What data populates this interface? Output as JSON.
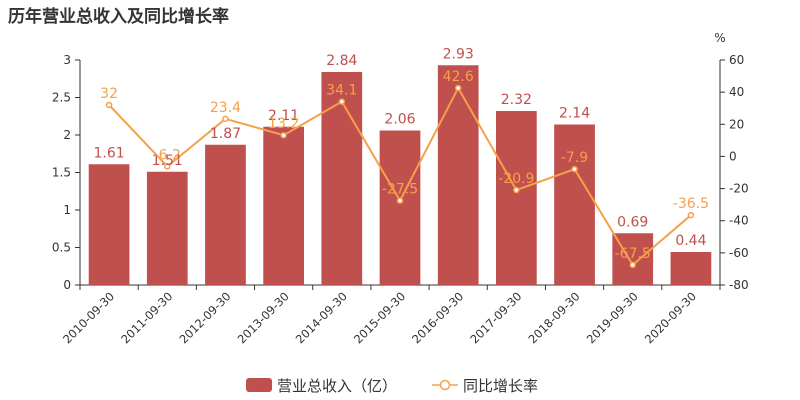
{
  "chart_data": {
    "type": "bar",
    "title": "历年营业总收入及同比增长率",
    "categories": [
      "2010-09-30",
      "2011-09-30",
      "2012-09-30",
      "2013-09-30",
      "2014-09-30",
      "2015-09-30",
      "2016-09-30",
      "2017-09-30",
      "2018-09-30",
      "2019-09-30",
      "2020-09-30"
    ],
    "series": [
      {
        "name": "营业总收入（亿）",
        "type": "bar",
        "axis": "left",
        "values": [
          1.61,
          1.51,
          1.87,
          2.11,
          2.84,
          2.06,
          2.93,
          2.32,
          2.14,
          0.69,
          0.44
        ],
        "labels": [
          "1.61",
          "1.51",
          "1.87",
          "2.11",
          "2.84",
          "2.06",
          "2.93",
          "2.32",
          "2.14",
          "0.69",
          "0.44"
        ]
      },
      {
        "name": "同比增长率",
        "type": "line",
        "axis": "right",
        "values": [
          32,
          -6.2,
          23.4,
          13.2,
          34.1,
          -27.5,
          42.6,
          -20.9,
          -7.9,
          -67.5,
          -36.5
        ],
        "labels": [
          "32",
          "-6.2",
          "23.4",
          "13.2",
          "34.1",
          "-27.5",
          "42.6",
          "-20.9",
          "-7.9",
          "-67.5",
          "-36.5"
        ]
      }
    ],
    "y_left": {
      "ylim": [
        0,
        3
      ],
      "ticks": [
        "0",
        "0.5",
        "1",
        "1.5",
        "2",
        "2.5",
        "3"
      ]
    },
    "y_right": {
      "ylim": [
        -80,
        60
      ],
      "unit": "%",
      "ticks": [
        "-80",
        "-60",
        "-40",
        "-20",
        "0",
        "20",
        "40",
        "60"
      ]
    },
    "grid": false,
    "legend": "bottom-center",
    "colors": {
      "bar": "#c0504d",
      "bar_label": "#c0504d",
      "line": "#f5a04a",
      "line_label": "#f5a04a",
      "axis": "#333333"
    }
  }
}
